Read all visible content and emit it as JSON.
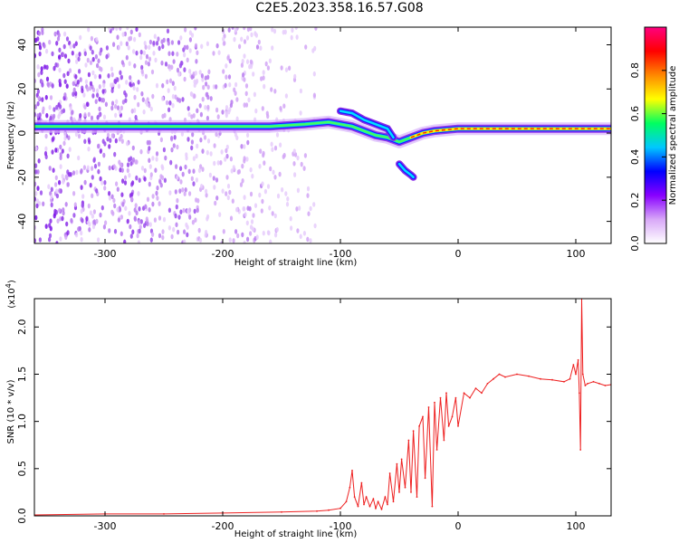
{
  "title": "C2E5.2023.358.16.57.G08",
  "chart_data": [
    {
      "type": "heatmap",
      "xlabel": "Height of straight line (km)",
      "ylabel": "Frequency (Hz)",
      "xlim": [
        -360,
        130
      ],
      "ylim": [
        -50,
        48
      ],
      "xticks": [
        -300,
        -200,
        -100,
        0,
        100
      ],
      "yticks": [
        -40,
        -20,
        0,
        20,
        40
      ],
      "colorbar": {
        "label": "Normalized spectral amplitude",
        "range": [
          0.0,
          1.0
        ],
        "ticks": [
          "0.0",
          "0.2",
          "0.4",
          "0.6",
          "0.8"
        ],
        "tick_values": [
          0.0,
          0.2,
          0.4,
          0.6,
          0.8
        ],
        "colors": [
          "#ffffff",
          "#d8a8f8",
          "#8800ff",
          "#0000ff",
          "#00c8ff",
          "#00ff60",
          "#ffff00",
          "#ff8800",
          "#ff0000",
          "#ff0080"
        ]
      },
      "ridge": {
        "x": [
          -360,
          -300,
          -250,
          -200,
          -160,
          -130,
          -110,
          -100,
          -90,
          -80,
          -70,
          -60,
          -50,
          -40,
          -30,
          -20,
          0,
          50,
          100,
          130
        ],
        "y": [
          3,
          3,
          3,
          3,
          3,
          4,
          5,
          4,
          3,
          1,
          -1,
          -2,
          -4,
          -2,
          0,
          1,
          2,
          2,
          2,
          2
        ]
      },
      "branches": [
        {
          "x": [
            -100,
            -90,
            -80,
            -70,
            -60,
            -55
          ],
          "y": [
            10,
            9,
            6,
            4,
            2,
            -2
          ]
        },
        {
          "x": [
            -50,
            -45,
            -40,
            -38
          ],
          "y": [
            -14,
            -17,
            -19,
            -20
          ]
        }
      ],
      "noise_extent_x": [
        -360,
        -120
      ]
    },
    {
      "type": "line",
      "xlabel": "Height of straight line (km)",
      "ylabel": "SNR (10 * v/v)",
      "scale_label": "(x10",
      "scale_exponent": "4",
      "scale_suffix": ")",
      "xlim": [
        -360,
        130
      ],
      "ylim": [
        0,
        2.3
      ],
      "xticks": [
        -300,
        -200,
        -100,
        0,
        100
      ],
      "yticks": [
        0.0,
        0.5,
        1.0,
        1.5,
        2.0
      ],
      "ytick_labels": [
        "0.0",
        "0.5",
        "1.0",
        "1.5",
        "2.0"
      ],
      "color": "#ee2020",
      "series": [
        {
          "x": [
            -360,
            -300,
            -250,
            -200,
            -150,
            -120,
            -110,
            -100,
            -95,
            -92,
            -90,
            -88,
            -85,
            -82,
            -80,
            -78,
            -75,
            -72,
            -70,
            -68,
            -65,
            -62,
            -60,
            -58,
            -55,
            -52,
            -50,
            -48,
            -45,
            -42,
            -40,
            -38,
            -35,
            -33,
            -30,
            -28,
            -25,
            -22,
            -20,
            -18,
            -15,
            -12,
            -10,
            -8,
            -5,
            -2,
            0,
            5,
            10,
            15,
            20,
            25,
            30,
            35,
            40,
            50,
            60,
            70,
            80,
            90,
            95,
            98,
            100,
            102,
            103,
            104,
            105,
            106,
            108,
            110,
            115,
            120,
            125,
            130
          ],
          "y": [
            0.01,
            0.02,
            0.02,
            0.03,
            0.04,
            0.05,
            0.06,
            0.08,
            0.15,
            0.3,
            0.48,
            0.2,
            0.1,
            0.35,
            0.12,
            0.2,
            0.1,
            0.18,
            0.08,
            0.15,
            0.07,
            0.2,
            0.12,
            0.45,
            0.15,
            0.55,
            0.25,
            0.6,
            0.3,
            0.8,
            0.25,
            0.9,
            0.2,
            0.95,
            1.05,
            0.4,
            1.15,
            0.1,
            1.2,
            0.7,
            1.25,
            0.8,
            1.3,
            0.95,
            1.05,
            1.25,
            0.95,
            1.3,
            1.25,
            1.35,
            1.3,
            1.4,
            1.45,
            1.5,
            1.47,
            1.5,
            1.48,
            1.45,
            1.44,
            1.42,
            1.45,
            1.6,
            1.5,
            1.65,
            1.3,
            0.7,
            2.3,
            1.5,
            1.38,
            1.4,
            1.42,
            1.4,
            1.38,
            1.39
          ]
        }
      ]
    }
  ]
}
